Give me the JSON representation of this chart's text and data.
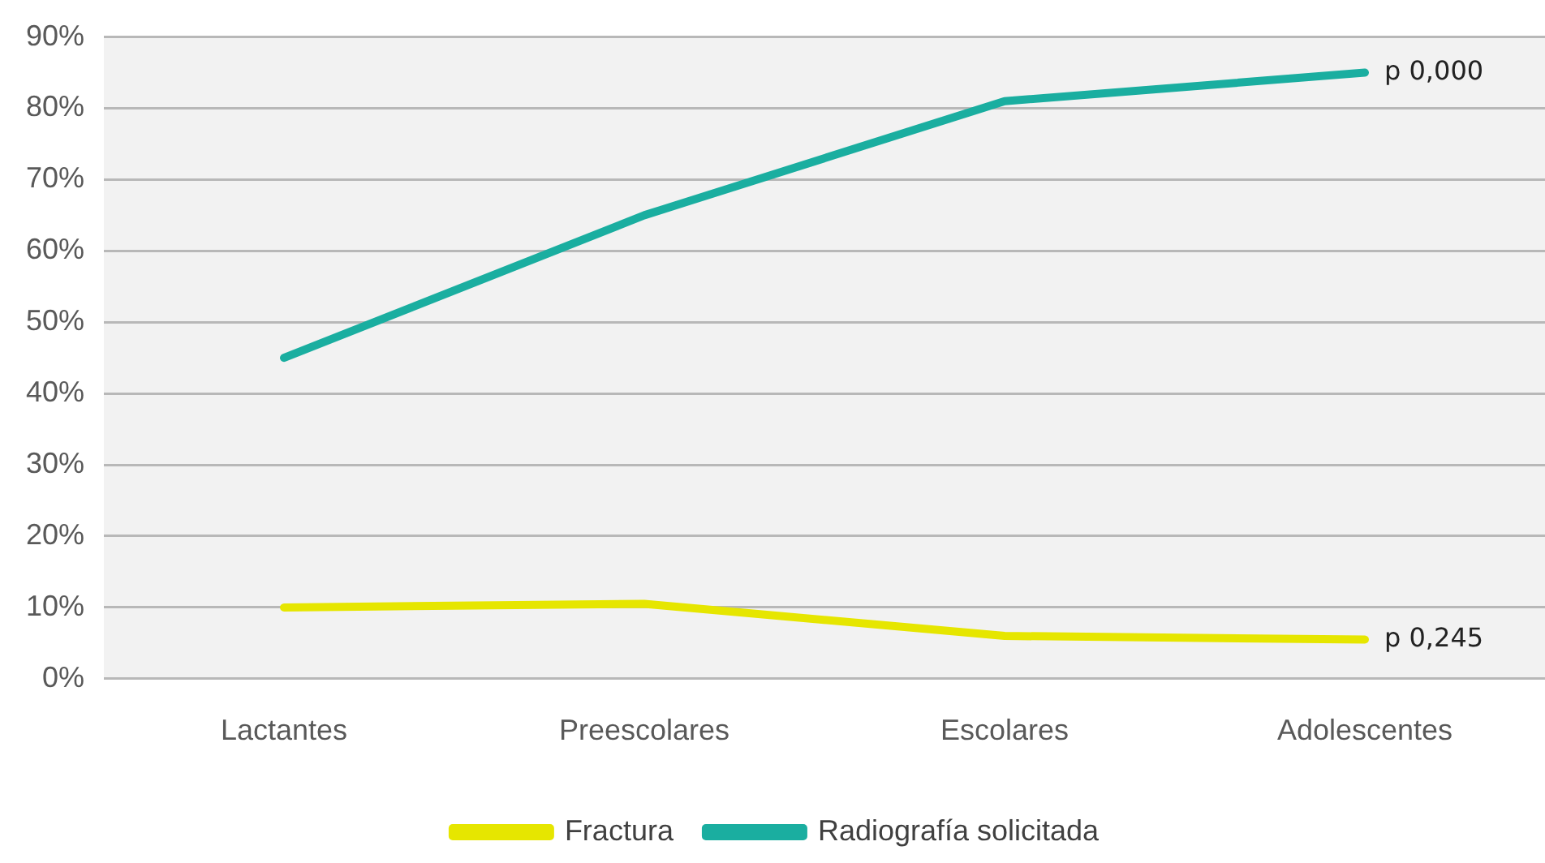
{
  "chart_data": {
    "type": "line",
    "categories": [
      "Lactantes",
      "Preescolares",
      "Escolares",
      "Adolescentes"
    ],
    "series": [
      {
        "name": "Fractura",
        "color": "#e6e600",
        "values": [
          10,
          10.5,
          6,
          5.5
        ]
      },
      {
        "name": "Radiografía solicitada",
        "color": "#1aaea0",
        "values": [
          45,
          65,
          81,
          85
        ]
      }
    ],
    "ylim": [
      0,
      90
    ],
    "yticks": [
      {
        "value": 0,
        "label": "0%"
      },
      {
        "value": 10,
        "label": "10%"
      },
      {
        "value": 20,
        "label": "20%"
      },
      {
        "value": 30,
        "label": "30%"
      },
      {
        "value": 40,
        "label": "40%"
      },
      {
        "value": 50,
        "label": "50%"
      },
      {
        "value": 60,
        "label": "60%"
      },
      {
        "value": 70,
        "label": "70%"
      },
      {
        "value": 80,
        "label": "80%"
      },
      {
        "value": 90,
        "label": "90%"
      }
    ],
    "grid": "y",
    "legend": "bottom",
    "marker": "none",
    "line_style": "solid",
    "annotations": [
      {
        "text": "p 0,000",
        "x": "Adolescentes",
        "y": 85
      },
      {
        "text": "p 0,245",
        "x": "Adolescentes",
        "y": 5.5
      }
    ]
  }
}
